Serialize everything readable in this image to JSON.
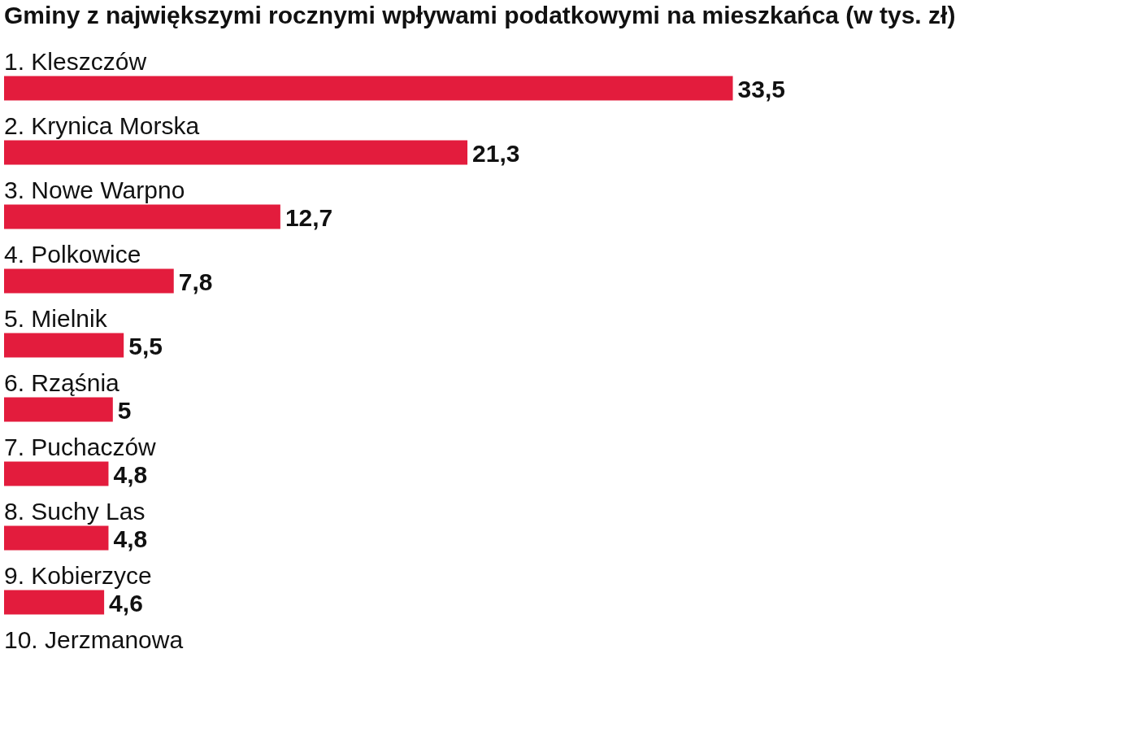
{
  "chart_data": {
    "type": "bar",
    "orientation": "horizontal",
    "title": "Gminy z największymi rocznymi wpływami podatkowymi na mieszkańca (w tys. zł)",
    "categories": [
      "1. Kleszczów",
      "2. Krynica Morska",
      "3. Nowe Warpno",
      "4. Polkowice",
      "5. Mielnik",
      "6. Rząśnia",
      "7. Puchaczów",
      "8. Suchy Las",
      "9. Kobierzyce",
      "10. Jerzmanowa"
    ],
    "values": [
      33.5,
      21.3,
      12.7,
      7.8,
      5.5,
      5,
      4.8,
      4.8,
      4.6,
      null
    ],
    "value_labels": [
      "33,5",
      "21,3",
      "12,7",
      "7,8",
      "5,5",
      "5",
      "4,8",
      "4,8",
      "4,6",
      null
    ],
    "color": "#e31c3d"
  }
}
